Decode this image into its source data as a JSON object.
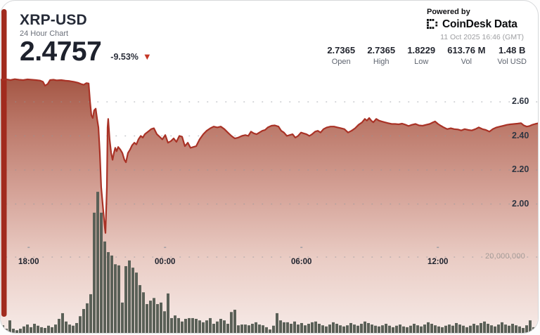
{
  "card": {
    "header": {
      "symbol": "XRP-USD",
      "subtitle": "24 Hour Chart",
      "price": "2.4757",
      "change_pct": "-9.53%",
      "change_direction": "down",
      "down_arrow": "▼",
      "powered_by": "Powered by",
      "brand": {
        "icon": "coindesk-logo-icon",
        "name_1": "CoinDesk",
        "name_2": "Data"
      },
      "timestamp": "11 Oct 2025 16:46 (GMT)"
    },
    "stats": [
      {
        "value": "2.7365",
        "label": "Open"
      },
      {
        "value": "2.7365",
        "label": "High"
      },
      {
        "value": "1.8229",
        "label": "Low"
      },
      {
        "value": "613.76 M",
        "label": "Vol"
      },
      {
        "value": "1.48 B",
        "label": "Vol USD"
      }
    ]
  },
  "chart_data": {
    "type": "area",
    "title": "XRP-USD 24 hour price chart with volume",
    "x_axis": {
      "labels": [
        "18:00",
        "00:00",
        "06:00",
        "12:00"
      ],
      "t_hours": [
        1.23,
        7.23,
        13.23,
        19.23
      ],
      "range_hours": [
        0,
        24
      ],
      "grid": "dotted"
    },
    "y_axis": {
      "side": "right",
      "tick_labels": [
        "2.60",
        "2.40",
        "2.20",
        "2.00"
      ],
      "tick_values": [
        2.6,
        2.4,
        2.2,
        2.0
      ],
      "grid": "dotted"
    },
    "volume_axis": {
      "tick_label": "20,000,000",
      "tick_value_millions": 20
    },
    "price_series": {
      "name": "XRP-USD price",
      "open": 2.7365,
      "high": 2.7365,
      "low": 1.8229,
      "last": 2.4757,
      "points_t_hours_price": [
        [
          0,
          2.73
        ],
        [
          0.25,
          2.732
        ],
        [
          0.43,
          2.728
        ],
        [
          0.62,
          2.733
        ],
        [
          0.8,
          2.73
        ],
        [
          0.99,
          2.728
        ],
        [
          1.18,
          2.732
        ],
        [
          1.36,
          2.73
        ],
        [
          1.55,
          2.728
        ],
        [
          1.73,
          2.725
        ],
        [
          1.86,
          2.718
        ],
        [
          1.95,
          2.695
        ],
        [
          2.07,
          2.705
        ],
        [
          2.17,
          2.728
        ],
        [
          2.32,
          2.73
        ],
        [
          2.47,
          2.726
        ],
        [
          2.66,
          2.728
        ],
        [
          2.85,
          2.724
        ],
        [
          3.03,
          2.722
        ],
        [
          3.22,
          2.718
        ],
        [
          3.4,
          2.712
        ],
        [
          3.53,
          2.705
        ],
        [
          3.65,
          2.7
        ],
        [
          3.77,
          2.71
        ],
        [
          3.87,
          2.708
        ],
        [
          3.93,
          2.6
        ],
        [
          3.99,
          2.52
        ],
        [
          4.05,
          2.505
        ],
        [
          4.11,
          2.55
        ],
        [
          4.18,
          2.56
        ],
        [
          4.24,
          2.5
        ],
        [
          4.3,
          2.45
        ],
        [
          4.36,
          2.3
        ],
        [
          4.42,
          2.1
        ],
        [
          4.52,
          1.95
        ],
        [
          4.58,
          1.86
        ],
        [
          4.61,
          1.83
        ],
        [
          4.67,
          2.1
        ],
        [
          4.7,
          2.45
        ],
        [
          4.73,
          2.5
        ],
        [
          4.79,
          2.38
        ],
        [
          4.86,
          2.3
        ],
        [
          4.92,
          2.26
        ],
        [
          4.98,
          2.3
        ],
        [
          5.04,
          2.33
        ],
        [
          5.1,
          2.31
        ],
        [
          5.17,
          2.335
        ],
        [
          5.26,
          2.32
        ],
        [
          5.35,
          2.3
        ],
        [
          5.44,
          2.26
        ],
        [
          5.51,
          2.245
        ],
        [
          5.6,
          2.3
        ],
        [
          5.69,
          2.32
        ],
        [
          5.78,
          2.345
        ],
        [
          5.88,
          2.36
        ],
        [
          5.97,
          2.35
        ],
        [
          6.06,
          2.38
        ],
        [
          6.16,
          2.4
        ],
        [
          6.25,
          2.39
        ],
        [
          6.34,
          2.41
        ],
        [
          6.43,
          2.42
        ],
        [
          6.53,
          2.43
        ],
        [
          6.62,
          2.44
        ],
        [
          6.74,
          2.445
        ],
        [
          6.87,
          2.41
        ],
        [
          6.99,
          2.395
        ],
        [
          7.11,
          2.38
        ],
        [
          7.24,
          2.405
        ],
        [
          7.36,
          2.36
        ],
        [
          7.49,
          2.37
        ],
        [
          7.61,
          2.385
        ],
        [
          7.73,
          2.365
        ],
        [
          7.86,
          2.4
        ],
        [
          7.98,
          2.395
        ],
        [
          8.1,
          2.34
        ],
        [
          8.23,
          2.36
        ],
        [
          8.35,
          2.33
        ],
        [
          8.47,
          2.335
        ],
        [
          8.6,
          2.34
        ],
        [
          8.75,
          2.38
        ],
        [
          8.91,
          2.41
        ],
        [
          9.06,
          2.43
        ],
        [
          9.22,
          2.445
        ],
        [
          9.37,
          2.455
        ],
        [
          9.53,
          2.45
        ],
        [
          9.68,
          2.455
        ],
        [
          9.84,
          2.44
        ],
        [
          9.99,
          2.42
        ],
        [
          10.15,
          2.4
        ],
        [
          10.3,
          2.385
        ],
        [
          10.45,
          2.39
        ],
        [
          10.61,
          2.4
        ],
        [
          10.76,
          2.405
        ],
        [
          10.89,
          2.4
        ],
        [
          11.01,
          2.425
        ],
        [
          11.14,
          2.415
        ],
        [
          11.26,
          2.41
        ],
        [
          11.38,
          2.42
        ],
        [
          11.51,
          2.43
        ],
        [
          11.63,
          2.435
        ],
        [
          11.75,
          2.45
        ],
        [
          11.91,
          2.46
        ],
        [
          12.06,
          2.462
        ],
        [
          12.22,
          2.455
        ],
        [
          12.34,
          2.43
        ],
        [
          12.46,
          2.42
        ],
        [
          12.59,
          2.4
        ],
        [
          12.71,
          2.405
        ],
        [
          12.84,
          2.41
        ],
        [
          12.96,
          2.39
        ],
        [
          13.08,
          2.4
        ],
        [
          13.21,
          2.42
        ],
        [
          13.33,
          2.415
        ],
        [
          13.45,
          2.41
        ],
        [
          13.58,
          2.4
        ],
        [
          13.7,
          2.41
        ],
        [
          13.83,
          2.425
        ],
        [
          13.95,
          2.43
        ],
        [
          14.07,
          2.42
        ],
        [
          14.2,
          2.44
        ],
        [
          14.35,
          2.45
        ],
        [
          14.51,
          2.455
        ],
        [
          14.66,
          2.455
        ],
        [
          14.82,
          2.45
        ],
        [
          14.97,
          2.445
        ],
        [
          15.12,
          2.44
        ],
        [
          15.28,
          2.42
        ],
        [
          15.43,
          2.43
        ],
        [
          15.59,
          2.445
        ],
        [
          15.74,
          2.465
        ],
        [
          15.9,
          2.48
        ],
        [
          16.02,
          2.5
        ],
        [
          16.11,
          2.49
        ],
        [
          16.21,
          2.505
        ],
        [
          16.3,
          2.49
        ],
        [
          16.39,
          2.48
        ],
        [
          16.52,
          2.5
        ],
        [
          16.64,
          2.49
        ],
        [
          16.76,
          2.485
        ],
        [
          16.89,
          2.48
        ],
        [
          17.04,
          2.475
        ],
        [
          17.2,
          2.47
        ],
        [
          17.35,
          2.47
        ],
        [
          17.51,
          2.468
        ],
        [
          17.66,
          2.472
        ],
        [
          17.82,
          2.465
        ],
        [
          17.94,
          2.458
        ],
        [
          18.09,
          2.465
        ],
        [
          18.25,
          2.47
        ],
        [
          18.4,
          2.462
        ],
        [
          18.56,
          2.46
        ],
        [
          18.71,
          2.465
        ],
        [
          18.87,
          2.47
        ],
        [
          19.02,
          2.48
        ],
        [
          19.11,
          2.485
        ],
        [
          19.24,
          2.47
        ],
        [
          19.36,
          2.46
        ],
        [
          19.49,
          2.45
        ],
        [
          19.64,
          2.44
        ],
        [
          19.8,
          2.445
        ],
        [
          19.95,
          2.44
        ],
        [
          20.11,
          2.438
        ],
        [
          20.26,
          2.432
        ],
        [
          20.41,
          2.44
        ],
        [
          20.57,
          2.435
        ],
        [
          20.72,
          2.432
        ],
        [
          20.88,
          2.44
        ],
        [
          21.03,
          2.45
        ],
        [
          21.19,
          2.44
        ],
        [
          21.34,
          2.435
        ],
        [
          21.5,
          2.425
        ],
        [
          21.65,
          2.44
        ],
        [
          21.81,
          2.45
        ],
        [
          21.96,
          2.455
        ],
        [
          22.12,
          2.46
        ],
        [
          22.27,
          2.465
        ],
        [
          22.42,
          2.468
        ],
        [
          22.58,
          2.47
        ],
        [
          22.73,
          2.472
        ],
        [
          22.89,
          2.475
        ],
        [
          23.01,
          2.462
        ],
        [
          23.14,
          2.455
        ],
        [
          23.26,
          2.458
        ],
        [
          23.38,
          2.465
        ],
        [
          23.51,
          2.47
        ],
        [
          23.63,
          2.474
        ],
        [
          23.75,
          2.4757
        ]
      ]
    },
    "volume_series_millions": [
      2.0,
      1.1,
      3.3,
      1.1,
      0.7,
      1.1,
      1.7,
      2.2,
      1.5,
      2.4,
      1.9,
      1.5,
      1.3,
      1.9,
      1.5,
      2.2,
      3.7,
      5.2,
      3.0,
      2.2,
      1.9,
      2.6,
      4.4,
      6.3,
      7.8,
      10.2,
      31.7,
      37.2,
      31.7,
      24.1,
      21.3,
      20.4,
      18.1,
      17.8,
      8.0,
      17.6,
      19.1,
      17.2,
      15.9,
      12.6,
      10.7,
      7.6,
      8.5,
      9.2,
      7.6,
      8.0,
      5.7,
      10.4,
      3.9,
      4.6,
      3.9,
      3.0,
      3.7,
      3.9,
      3.9,
      3.7,
      3.3,
      2.8,
      3.3,
      3.9,
      2.4,
      3.0,
      3.7,
      3.3,
      2.4,
      5.5,
      6.1,
      2.0,
      2.2,
      2.2,
      2.0,
      2.4,
      2.8,
      2.2,
      2.0,
      1.5,
      0.9,
      1.9,
      5.2,
      3.3,
      2.8,
      2.8,
      2.4,
      3.0,
      2.2,
      2.6,
      2.0,
      2.4,
      2.8,
      3.0,
      2.4,
      2.0,
      1.7,
      2.2,
      2.8,
      2.4,
      2.0,
      1.7,
      2.0,
      2.6,
      2.2,
      1.9,
      2.4,
      3.0,
      2.6,
      2.2,
      1.9,
      1.7,
      2.0,
      2.4,
      1.9,
      1.5,
      1.9,
      2.2,
      1.7,
      1.5,
      1.9,
      2.4,
      2.0,
      1.7,
      2.2,
      2.8,
      2.4,
      2.0,
      1.7,
      1.5,
      1.9,
      2.2,
      1.9,
      2.6,
      2.2,
      1.9,
      1.5,
      1.9,
      2.4,
      2.0,
      2.6,
      3.0,
      2.4,
      2.0,
      1.7,
      2.2,
      2.8,
      2.2,
      1.9,
      2.4,
      2.0,
      1.7,
      1.3,
      2.0,
      3.3,
      1.5,
      1.1,
      4.6,
      2.8
    ],
    "colors": {
      "line": "#a93226",
      "left_edge": "#a12b1e",
      "area_top": "#a0503e",
      "area_bottom": "#f7ece9",
      "volume_bar": "#5a6057",
      "grid_dot": "#8f959d",
      "down_arrow": "#c53726"
    },
    "legend": "none"
  }
}
